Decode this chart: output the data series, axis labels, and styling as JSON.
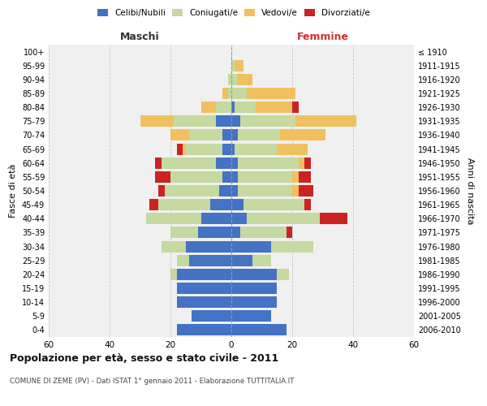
{
  "age_groups": [
    "0-4",
    "5-9",
    "10-14",
    "15-19",
    "20-24",
    "25-29",
    "30-34",
    "35-39",
    "40-44",
    "45-49",
    "50-54",
    "55-59",
    "60-64",
    "65-69",
    "70-74",
    "75-79",
    "80-84",
    "85-89",
    "90-94",
    "95-99",
    "100+"
  ],
  "birth_years": [
    "2006-2010",
    "2001-2005",
    "1996-2000",
    "1991-1995",
    "1986-1990",
    "1981-1985",
    "1976-1980",
    "1971-1975",
    "1966-1970",
    "1961-1965",
    "1956-1960",
    "1951-1955",
    "1946-1950",
    "1941-1945",
    "1936-1940",
    "1931-1935",
    "1926-1930",
    "1921-1925",
    "1916-1920",
    "1911-1915",
    "≤ 1910"
  ],
  "maschi": {
    "celibi": [
      18,
      13,
      18,
      18,
      18,
      14,
      15,
      11,
      10,
      7,
      4,
      3,
      5,
      3,
      3,
      5,
      0,
      0,
      0,
      0,
      0
    ],
    "coniugati": [
      0,
      0,
      0,
      0,
      2,
      4,
      8,
      9,
      18,
      17,
      18,
      17,
      18,
      12,
      11,
      14,
      5,
      1,
      1,
      0,
      0
    ],
    "vedovi": [
      0,
      0,
      0,
      0,
      0,
      0,
      0,
      0,
      0,
      0,
      0,
      0,
      0,
      1,
      6,
      11,
      5,
      2,
      0,
      0,
      0
    ],
    "divorziati": [
      0,
      0,
      0,
      0,
      0,
      0,
      0,
      0,
      0,
      3,
      2,
      5,
      2,
      2,
      0,
      0,
      0,
      0,
      0,
      0,
      0
    ]
  },
  "femmine": {
    "nubili": [
      18,
      13,
      15,
      15,
      15,
      7,
      13,
      3,
      5,
      4,
      2,
      2,
      2,
      1,
      2,
      3,
      1,
      0,
      0,
      0,
      0
    ],
    "coniugate": [
      0,
      0,
      0,
      0,
      4,
      6,
      14,
      15,
      24,
      20,
      18,
      18,
      20,
      14,
      14,
      18,
      7,
      5,
      2,
      1,
      0
    ],
    "vedove": [
      0,
      0,
      0,
      0,
      0,
      0,
      0,
      0,
      0,
      0,
      2,
      2,
      2,
      10,
      15,
      20,
      12,
      16,
      5,
      3,
      0
    ],
    "divorziate": [
      0,
      0,
      0,
      0,
      0,
      0,
      0,
      2,
      9,
      2,
      5,
      4,
      2,
      0,
      0,
      0,
      2,
      0,
      0,
      0,
      0
    ]
  },
  "colors": {
    "celibi_nubili": "#4472c4",
    "coniugati": "#c5d9a0",
    "vedovi": "#f0c060",
    "divorziati": "#cc2222"
  },
  "xlim": 60,
  "title": "Popolazione per età, sesso e stato civile - 2011",
  "subtitle": "COMUNE DI ZEME (PV) - Dati ISTAT 1° gennaio 2011 - Elaborazione TUTTITALIA.IT",
  "ylabel_left": "Fasce di età",
  "ylabel_right": "Anni di nascita",
  "xlabel_left": "Maschi",
  "xlabel_right": "Femmine"
}
